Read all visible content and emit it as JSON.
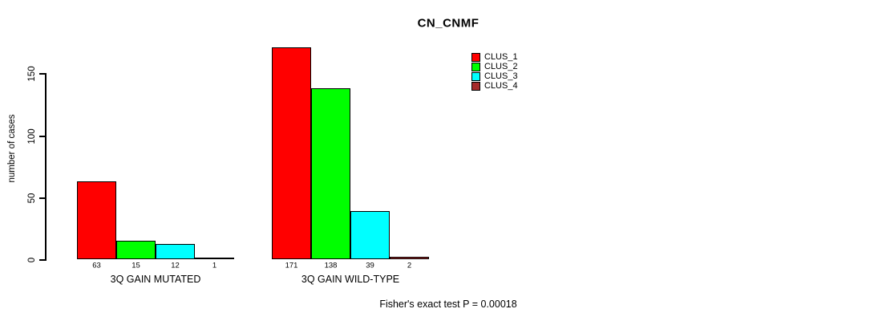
{
  "title": "CN_CNMF",
  "footer": "Fisher's exact test P = 0.00018",
  "chart_data": {
    "type": "bar",
    "title": "CN_CNMF",
    "xlabel": "",
    "ylabel": "number of cases",
    "categories": [
      "3Q GAIN MUTATED",
      "3Q GAIN WILD-TYPE"
    ],
    "series": [
      {
        "name": "CLUS_1",
        "color": "#ff0000",
        "values": [
          63,
          171
        ]
      },
      {
        "name": "CLUS_2",
        "color": "#00ff00",
        "values": [
          15,
          138
        ]
      },
      {
        "name": "CLUS_3",
        "color": "#00ffff",
        "values": [
          12,
          39
        ]
      },
      {
        "name": "CLUS_4",
        "color": "#a52a2a",
        "values": [
          1,
          2
        ]
      }
    ],
    "groups": [
      {
        "label": "3Q GAIN MUTATED",
        "values": [
          63,
          15,
          12,
          1
        ]
      },
      {
        "label": "3Q GAIN WILD-TYPE",
        "values": [
          171,
          138,
          39,
          2
        ]
      }
    ],
    "yticks": [
      0,
      50,
      100,
      150
    ],
    "ylim": [
      0,
      177
    ],
    "grid": false,
    "legend_position": "top-right",
    "legend_entries": [
      "CLUS_1",
      "CLUS_2",
      "CLUS_3",
      "CLUS_4"
    ],
    "annotation": "Fisher's exact test P = 0.00018",
    "bar_border_color": "#000000",
    "axis_color": "#000000"
  }
}
